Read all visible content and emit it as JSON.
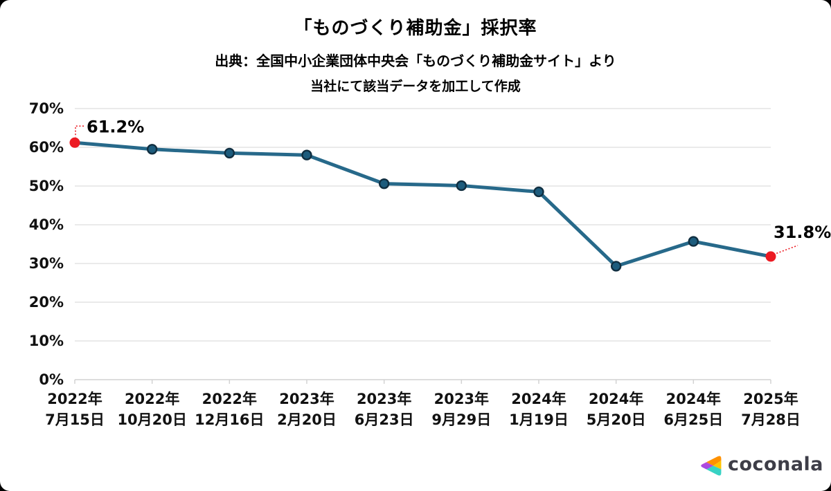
{
  "header": {
    "title": "「ものづくり補助金」採択率",
    "source_line1": "出典：全国中小企業団体中央会「ものづくり補助金サイト」より",
    "source_line2": "当社にて該当データを加工して作成"
  },
  "chart_data": {
    "type": "line",
    "title": "「ものづくり補助金」採択率",
    "xlabel": "",
    "ylabel": "",
    "categories": [
      "2022年\n7月15日",
      "2022年\n10月20日",
      "2022年\n12月16日",
      "2023年\n2月20日",
      "2023年\n6月23日",
      "2023年\n9月29日",
      "2024年\n1月19日",
      "2024年\n5月20日",
      "2024年\n6月25日",
      "2025年\n7月28日"
    ],
    "values": [
      61.2,
      59.5,
      58.5,
      58.0,
      50.6,
      50.1,
      48.5,
      29.3,
      35.7,
      31.8
    ],
    "ylim": [
      0,
      70
    ],
    "y_tick_step": 10,
    "y_tick_labels": [
      "0%",
      "10%",
      "20%",
      "30%",
      "40%",
      "50%",
      "60%",
      "70%"
    ],
    "grid": true,
    "legend": false,
    "annotations": [
      {
        "index": 0,
        "label": "61.2%",
        "placement": "elbow-top-right"
      },
      {
        "index": 9,
        "label": "31.8%",
        "placement": "diagonal-top-right"
      }
    ],
    "colors": {
      "line": "#27698a",
      "marker_fill": "#1d5c7d",
      "marker_stroke": "#102e40",
      "endpoint": "#ec1a22",
      "grid": "#e4e4e4",
      "axis": "#d2d2d2",
      "text": "#111111"
    }
  },
  "footer": {
    "brand": "coconala",
    "logo_colors": {
      "magenta": "#d843cf",
      "purple": "#7d52f0",
      "orange": "#ff9100",
      "yellow": "#ffc400",
      "teal": "#38d2c4"
    }
  }
}
